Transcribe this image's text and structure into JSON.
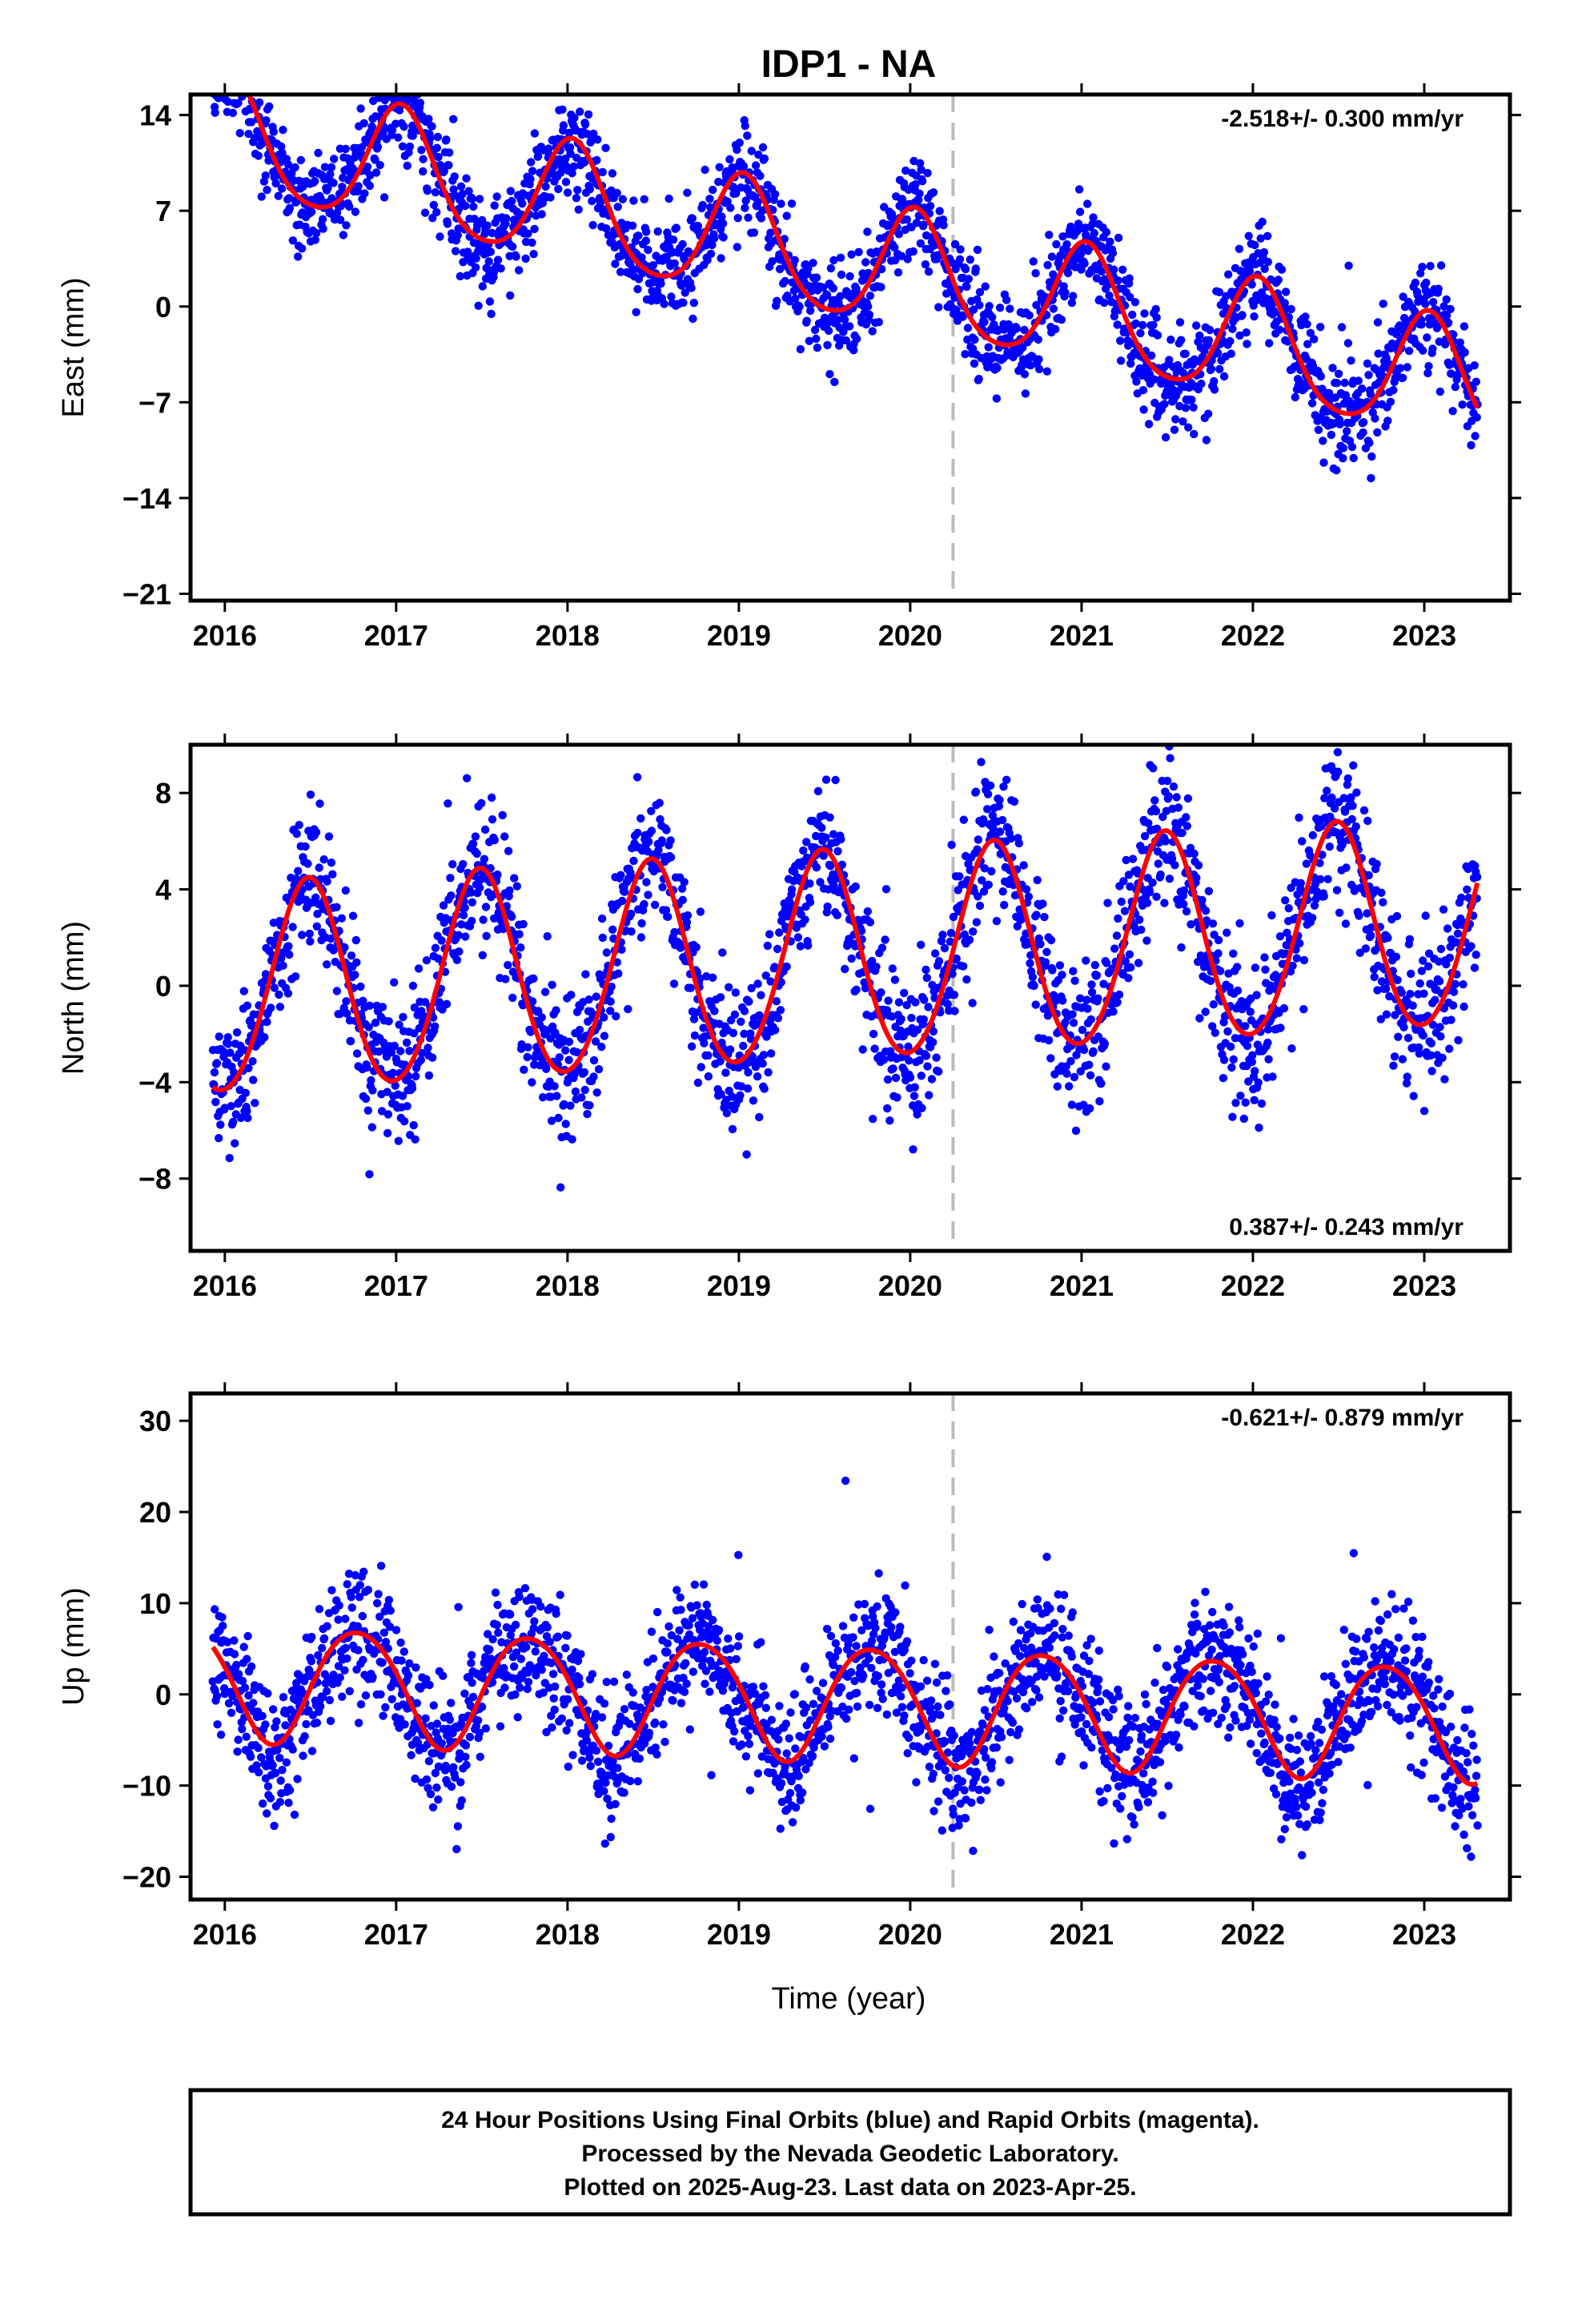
{
  "title": "IDP1 - NA",
  "xlabel": "Time (year)",
  "footer": [
    "24 Hour Positions Using Final Orbits (blue) and Rapid Orbits (magenta).",
    "Processed by the Nevada Geodetic Laboratory.",
    "Plotted on 2025-Aug-23. Last data on 2023-Apr-25."
  ],
  "colors": {
    "final_orbits": "#0000ff",
    "model_fit": "#ff0000",
    "marker_line": "#bbbbbb"
  },
  "chart_data": [
    {
      "type": "scatter",
      "component": "east",
      "ylabel": "East (mm)",
      "rate": "-2.518+/- 0.300 mm/yr",
      "rate_position": "top-right",
      "xlim": [
        2015.8,
        2023.5
      ],
      "ylim": [
        -21.5,
        15.5
      ],
      "x_ticks": [
        2016,
        2017,
        2018,
        2019,
        2020,
        2021,
        2022,
        2023
      ],
      "y_ticks": [
        14,
        7,
        0,
        -7,
        -14,
        -21
      ],
      "y_tick_labels": [
        "14",
        "7",
        "0",
        "−7",
        "−14",
        "−21"
      ],
      "vertical_marker_x": 2020.25,
      "data_range": [
        2015.93,
        2023.31
      ],
      "model": {
        "offset_at_2016": 12.4,
        "trend_mm_per_yr": -2.518,
        "annual_cos": 4.3,
        "annual_sin": 0.8,
        "semiannual_cos": 0.6,
        "semiannual_sin": 0.2
      },
      "scatter_sigma": 1.8,
      "series": [
        {
          "name": "Final Orbits",
          "color": "#0000ff",
          "marker": "dot"
        },
        {
          "name": "model",
          "color": "#ff0000",
          "marker": "line"
        }
      ]
    },
    {
      "type": "scatter",
      "component": "north",
      "ylabel": "North (mm)",
      "rate": "0.387+/- 0.243 mm/yr",
      "rate_position": "bottom-right",
      "xlim": [
        2015.8,
        2023.5
      ],
      "ylim": [
        -11,
        10
      ],
      "x_ticks": [
        2016,
        2017,
        2018,
        2019,
        2020,
        2021,
        2022,
        2023
      ],
      "y_ticks": [
        8,
        4,
        0,
        -4,
        -8
      ],
      "y_tick_labels": [
        "8",
        "4",
        "0",
        "−4",
        "−8"
      ],
      "vertical_marker_x": 2020.25,
      "data_range": [
        2015.93,
        2023.31
      ],
      "model": {
        "offset_at_2016": -0.3,
        "trend_mm_per_yr": 0.387,
        "annual_cos": -4.3,
        "annual_sin": 0.4,
        "semiannual_cos": 0.3,
        "semiannual_sin": 0.0
      },
      "scatter_sigma": 1.5,
      "series": [
        {
          "name": "Final Orbits",
          "color": "#0000ff",
          "marker": "dot"
        },
        {
          "name": "model",
          "color": "#ff0000",
          "marker": "line"
        }
      ]
    },
    {
      "type": "scatter",
      "component": "up",
      "ylabel": "Up (mm)",
      "rate": "-0.621+/- 0.879 mm/yr",
      "rate_position": "top-right",
      "xlim": [
        2015.8,
        2023.5
      ],
      "ylim": [
        -22.5,
        33
      ],
      "x_ticks": [
        2016,
        2017,
        2018,
        2019,
        2020,
        2021,
        2022,
        2023
      ],
      "y_ticks": [
        30,
        20,
        10,
        0,
        -10,
        -20
      ],
      "y_tick_labels": [
        "30",
        "20",
        "10",
        "0",
        "−10",
        "−20"
      ],
      "vertical_marker_x": 2020.25,
      "data_range": [
        2015.93,
        2023.31
      ],
      "model": {
        "offset_at_2016": 1.5,
        "trend_mm_per_yr": -0.621,
        "annual_cos": 1.0,
        "annual_sin": -6.2,
        "semiannual_cos": 0.5,
        "semiannual_sin": 0.3
      },
      "scatter_sigma": 3.6,
      "series": [
        {
          "name": "Final Orbits",
          "color": "#0000ff",
          "marker": "dot"
        },
        {
          "name": "model",
          "color": "#ff0000",
          "marker": "line"
        }
      ]
    }
  ]
}
